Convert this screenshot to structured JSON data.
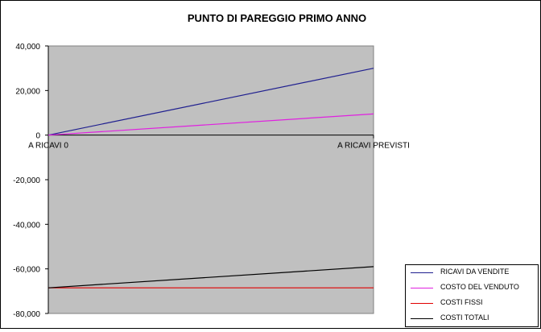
{
  "chart_data": {
    "type": "line",
    "title": "PUNTO DI PAREGGIO PRIMO ANNO",
    "xlabel": "",
    "ylabel": "",
    "categories": [
      "A RICAVI 0",
      "A RICAVI PREVISTI"
    ],
    "ylim": [
      -80000,
      40000
    ],
    "yticks": [
      40000,
      20000,
      0,
      -20000,
      -40000,
      -60000,
      -80000
    ],
    "ytick_labels": [
      "40,000",
      "20,000",
      "0",
      "-20,000",
      "-40,000",
      "-60,000",
      "-80,000"
    ],
    "grid": false,
    "legend_position": "bottom-right",
    "series": [
      {
        "name": "RICAVI DA VENDITE",
        "values": [
          0,
          30000
        ],
        "color": "#1f1f8f"
      },
      {
        "name": "COSTO DEL VENDUTO",
        "values": [
          0,
          9500
        ],
        "color": "#e020e0"
      },
      {
        "name": "COSTI FISSI",
        "values": [
          -68500,
          -68500
        ],
        "color": "#e00000"
      },
      {
        "name": "COSTI TOTALI",
        "values": [
          -68500,
          -59000
        ],
        "color": "#000000"
      }
    ]
  },
  "colors": {
    "plot_background": "#c0c0c0",
    "zero_line": "#000000"
  }
}
